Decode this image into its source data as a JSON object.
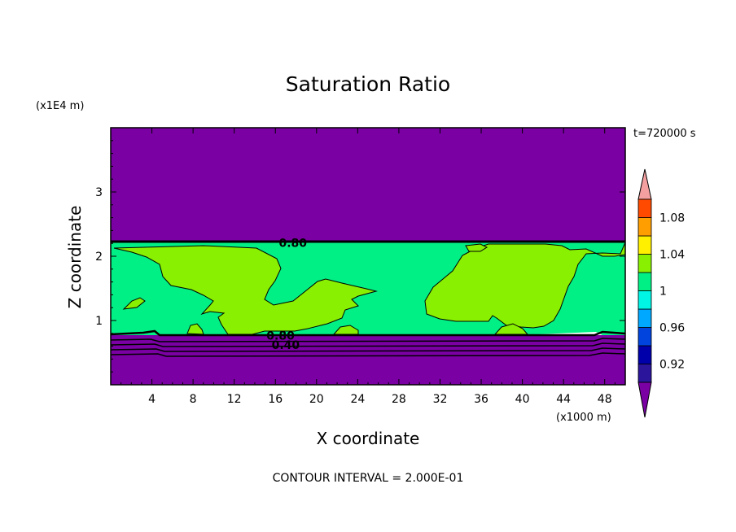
{
  "chart_data": {
    "type": "contour",
    "title": "Saturation Ratio",
    "xlabel": "X coordinate",
    "ylabel": "Z coordinate",
    "x_unit": "(x1000 m)",
    "y_unit": "(x1E4 m)",
    "time_label": "t=720000 s",
    "footnote": "CONTOUR INTERVAL = 2.000E-01",
    "xlim": [
      0,
      50
    ],
    "ylim": [
      0,
      4
    ],
    "x_ticks": [
      4,
      8,
      12,
      16,
      20,
      24,
      28,
      32,
      36,
      40,
      44,
      48
    ],
    "y_ticks": [
      1,
      2,
      3
    ],
    "contour_labels": [
      {
        "text": "0.80",
        "x": 17.7,
        "y": 2.22
      },
      {
        "text": "0.80",
        "x": 16.5,
        "y": 0.78
      },
      {
        "text": "0.40",
        "x": 17.0,
        "y": 0.63
      }
    ],
    "colorbar": {
      "tick_labels": [
        "1.08",
        "1.04",
        "1",
        "0.96",
        "0.92"
      ],
      "tick_values": [
        1.08,
        1.04,
        1.0,
        0.96,
        0.92
      ],
      "levels": [
        0.9,
        0.92,
        0.94,
        0.96,
        0.98,
        1.0,
        1.02,
        1.04,
        1.06,
        1.08,
        1.1
      ],
      "colors": [
        "#2a159b",
        "#0000aa",
        "#0044dd",
        "#00a8ff",
        "#00f5e4",
        "#00f085",
        "#88f000",
        "#fff000",
        "#ff9e00",
        "#ff4a00",
        "#ff1010"
      ],
      "under_color": "#7a00a3",
      "over_color": "#f5a0a0"
    },
    "regions": {
      "upper_color": "#7a00a3",
      "lower_color": "#7a00a3",
      "cloud_layer_color": "#00f085",
      "supersaturated_color": "#88f000"
    }
  }
}
